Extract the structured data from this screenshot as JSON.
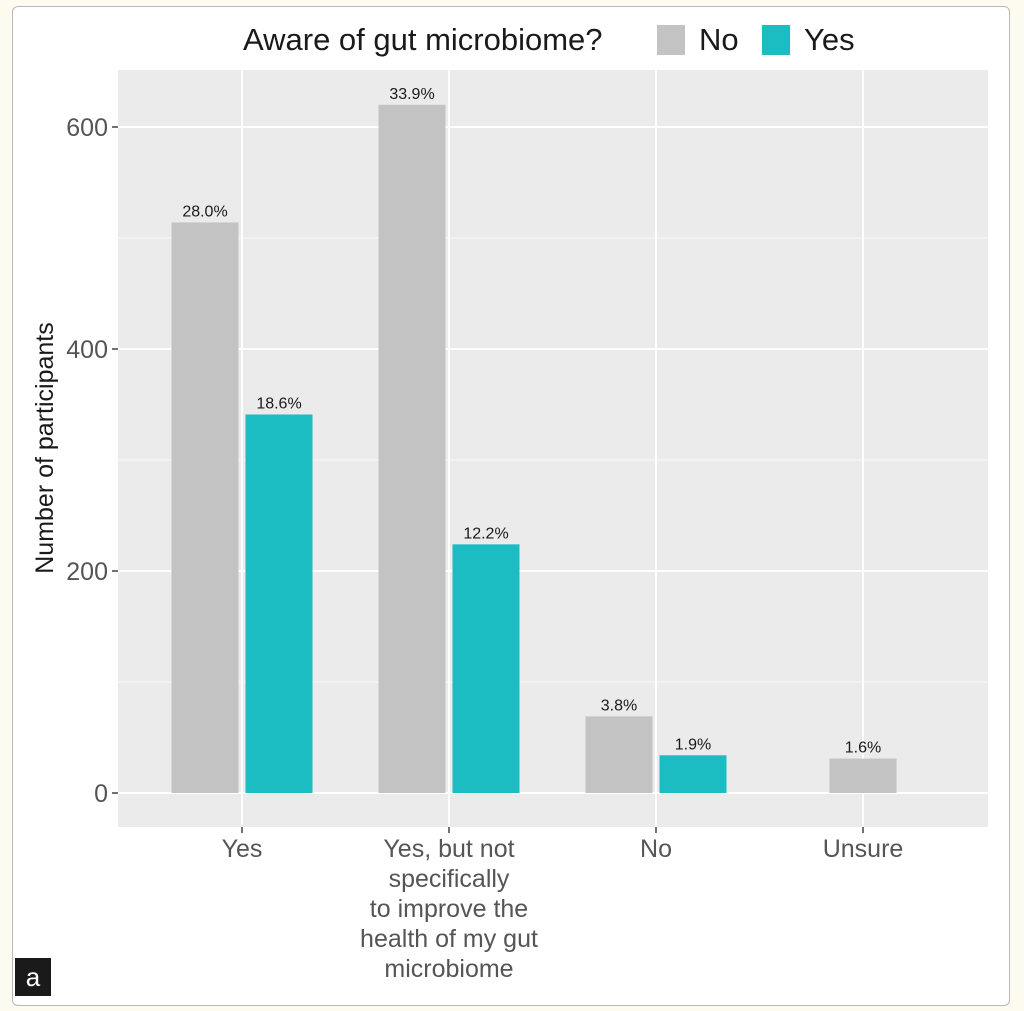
{
  "panel_label": "a",
  "chart_data": {
    "type": "bar",
    "title": "",
    "xlabel": "",
    "ylabel": "Number of participants",
    "ylim": [
      -30,
      650
    ],
    "yticks": [
      0,
      200,
      400,
      600
    ],
    "grid": true,
    "legend": {
      "title": "Aware of gut microbiome?",
      "placement": "top",
      "entries": [
        "No",
        "Yes"
      ]
    },
    "categories": [
      [
        "Yes"
      ],
      [
        "Yes, but not",
        "specifically",
        "to improve the",
        "health of my gut",
        "microbiome"
      ],
      [
        "No"
      ],
      [
        "Unsure"
      ]
    ],
    "series": [
      {
        "name": "No",
        "color": "#c3c3c3",
        "values": [
          514,
          620,
          69,
          31
        ],
        "labels": [
          "28.0%",
          "33.9%",
          "3.8%",
          "1.6%"
        ]
      },
      {
        "name": "Yes",
        "color": "#1bbcc2",
        "values": [
          341,
          224,
          34,
          null
        ],
        "labels": [
          "18.6%",
          "12.2%",
          "1.9%",
          null
        ]
      }
    ]
  }
}
